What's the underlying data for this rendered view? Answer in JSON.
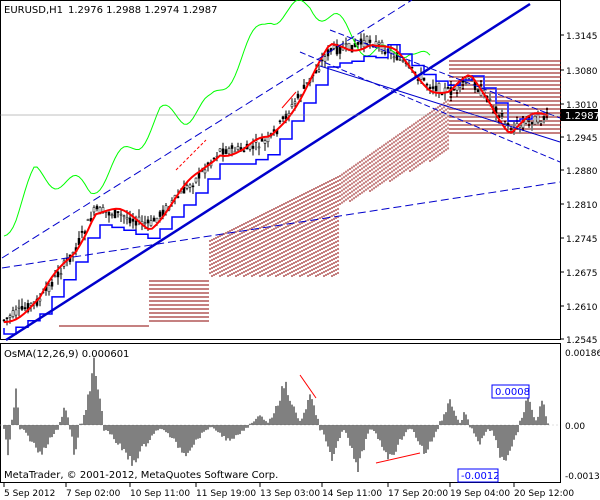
{
  "main_chart": {
    "symbol_label": "EURUSD,H1",
    "ohlc_label": "1.2976 1.2988 1.2974 1.2987",
    "price_ticks": [
      "1.3145",
      "1.3080",
      "1.3010",
      "1.2945",
      "1.2880",
      "1.2810",
      "1.2745",
      "1.2675",
      "1.2610",
      "1.2545"
    ],
    "current_price": "1.2987",
    "price_range": [
      1.252,
      1.32
    ]
  },
  "oscillator": {
    "label": "OsMA(12,26,9) 0.000601",
    "ticks": [
      "0.001864",
      "0.00",
      "-0.00133"
    ],
    "marker_high": "0.0008",
    "marker_low": "-0.0012"
  },
  "time_axis": {
    "labels": [
      "5 Sep 2012",
      "7 Sep 02:00",
      "10 Sep 11:00",
      "11 Sep 19:00",
      "13 Sep 03:00",
      "14 Sep 11:00",
      "17 Sep 20:00",
      "19 Sep 04:00",
      "20 Sep 12:00"
    ]
  },
  "copyright": "MetaTrader, © 2001-2012, MetaQuotes Software Corp.",
  "colors": {
    "background": "#ffffff",
    "candles": "#000000",
    "tenkan": "#ff0000",
    "kijun": "#0000ff",
    "chikou": "#00ff00",
    "cloud": "#8b0000",
    "trendline": "#0000cc",
    "grid": "#c0c0c0"
  }
}
